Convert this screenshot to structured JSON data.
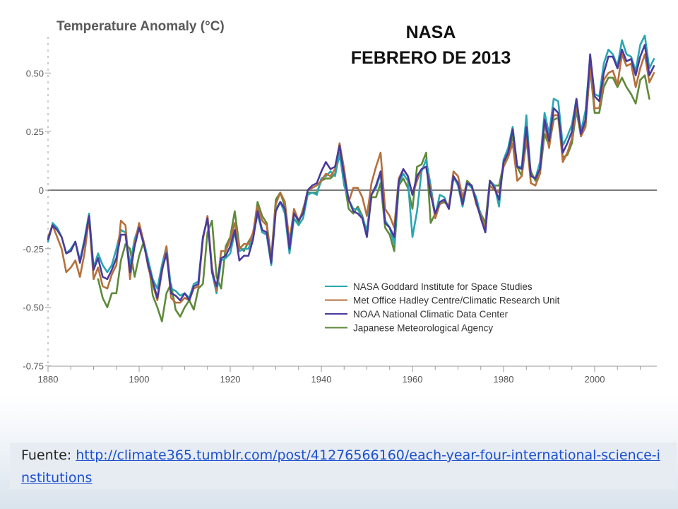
{
  "slide": {
    "title_line1": "NASA",
    "title_line2": "FEBRERO DE 2013",
    "source_label": "Fuente: ",
    "source_url": "http://climate365.tumblr.com/post/41276566160/each-year-four-international-science-institutions"
  },
  "chart_data": {
    "type": "line",
    "title": "Temperature Anomaly (°C)",
    "xlabel": "",
    "ylabel": "",
    "xlim": [
      1880,
      2012
    ],
    "ylim": [
      -0.75,
      0.65
    ],
    "x_ticks": [
      1880,
      1900,
      1920,
      1940,
      1960,
      1980,
      2000
    ],
    "y_ticks": [
      -0.75,
      -0.5,
      -0.25,
      0,
      0.25,
      0.5
    ],
    "y_tick_labels": [
      "-0.75",
      "-0.50",
      "-0.25",
      "0",
      "0.25",
      "0.50"
    ],
    "grid": false,
    "zero_line": true,
    "legend_position": "lower-right",
    "series": [
      {
        "name": "NASA Goddard Institute for Space Studies",
        "color": "#2aa6b2",
        "x_start": 1880,
        "values": [
          -0.22,
          -0.14,
          -0.16,
          -0.2,
          -0.27,
          -0.25,
          -0.22,
          -0.3,
          -0.21,
          -0.1,
          -0.33,
          -0.27,
          -0.32,
          -0.35,
          -0.32,
          -0.25,
          -0.17,
          -0.18,
          -0.32,
          -0.21,
          -0.15,
          -0.22,
          -0.3,
          -0.38,
          -0.42,
          -0.32,
          -0.24,
          -0.42,
          -0.43,
          -0.45,
          -0.44,
          -0.46,
          -0.4,
          -0.39,
          -0.2,
          -0.12,
          -0.35,
          -0.44,
          -0.3,
          -0.29,
          -0.27,
          -0.18,
          -0.26,
          -0.25,
          -0.25,
          -0.2,
          -0.1,
          -0.18,
          -0.19,
          -0.32,
          -0.08,
          -0.05,
          -0.1,
          -0.27,
          -0.12,
          -0.15,
          -0.12,
          -0.02,
          -0.01,
          -0.02,
          0.05,
          0.06,
          0.08,
          0.06,
          0.16,
          0.02,
          -0.04,
          -0.08,
          -0.08,
          -0.12,
          -0.17,
          -0.02,
          0.01,
          0.07,
          -0.13,
          -0.16,
          -0.23,
          0.03,
          0.07,
          0.04,
          -0.2,
          -0.09,
          0.08,
          0.13,
          0.02,
          -0.11,
          -0.02,
          -0.03,
          -0.08,
          0.06,
          0.02,
          -0.07,
          0.03,
          0.01,
          -0.03,
          -0.11,
          -0.18,
          0.04,
          0.02,
          -0.07,
          0.13,
          0.18,
          0.27,
          0.1,
          0.1,
          0.32,
          0.06,
          0.05,
          0.12,
          0.33,
          0.24,
          0.39,
          0.38,
          0.19,
          0.23,
          0.28,
          0.39,
          0.25,
          0.34,
          0.57,
          0.41,
          0.4,
          0.54,
          0.6,
          0.58,
          0.53,
          0.64,
          0.58,
          0.57,
          0.51,
          0.62,
          0.66,
          0.52,
          0.56
        ]
      },
      {
        "name": "Met Office Hadley Centre/Climatic Research Unit",
        "color": "#b5703b",
        "x_start": 1880,
        "values": [
          -0.2,
          -0.15,
          -0.2,
          -0.25,
          -0.35,
          -0.33,
          -0.3,
          -0.37,
          -0.27,
          -0.12,
          -0.38,
          -0.33,
          -0.41,
          -0.42,
          -0.36,
          -0.32,
          -0.13,
          -0.15,
          -0.38,
          -0.23,
          -0.14,
          -0.22,
          -0.33,
          -0.4,
          -0.47,
          -0.35,
          -0.24,
          -0.46,
          -0.48,
          -0.48,
          -0.46,
          -0.47,
          -0.42,
          -0.41,
          -0.21,
          -0.11,
          -0.33,
          -0.43,
          -0.26,
          -0.26,
          -0.21,
          -0.14,
          -0.25,
          -0.23,
          -0.23,
          -0.18,
          -0.07,
          -0.13,
          -0.15,
          -0.3,
          -0.06,
          -0.01,
          -0.05,
          -0.22,
          -0.08,
          -0.13,
          -0.09,
          0.0,
          0.01,
          0.02,
          0.04,
          0.07,
          0.06,
          0.09,
          0.2,
          0.09,
          -0.05,
          0.01,
          0.01,
          -0.03,
          -0.11,
          0.03,
          0.1,
          0.16,
          -0.08,
          -0.11,
          -0.16,
          0.05,
          0.09,
          0.06,
          -0.02,
          0.04,
          0.09,
          0.1,
          0.0,
          -0.12,
          -0.06,
          -0.04,
          -0.07,
          0.08,
          0.06,
          -0.03,
          0.03,
          0.02,
          -0.06,
          -0.11,
          -0.16,
          0.02,
          0.0,
          -0.01,
          0.1,
          0.14,
          0.2,
          0.04,
          0.06,
          0.23,
          0.03,
          0.02,
          0.07,
          0.29,
          0.18,
          0.32,
          0.32,
          0.12,
          0.16,
          0.22,
          0.37,
          0.23,
          0.27,
          0.53,
          0.35,
          0.35,
          0.47,
          0.5,
          0.51,
          0.45,
          0.58,
          0.53,
          0.54,
          0.44,
          0.52,
          0.58,
          0.46,
          0.5
        ]
      },
      {
        "name": "NOAA National Climatic Data Center",
        "color": "#4a3a9c",
        "x_start": 1880,
        "values": [
          -0.21,
          -0.15,
          -0.17,
          -0.2,
          -0.27,
          -0.26,
          -0.22,
          -0.31,
          -0.22,
          -0.11,
          -0.34,
          -0.29,
          -0.37,
          -0.38,
          -0.34,
          -0.29,
          -0.19,
          -0.19,
          -0.35,
          -0.24,
          -0.16,
          -0.23,
          -0.32,
          -0.39,
          -0.46,
          -0.34,
          -0.27,
          -0.44,
          -0.45,
          -0.47,
          -0.44,
          -0.47,
          -0.41,
          -0.4,
          -0.2,
          -0.12,
          -0.35,
          -0.41,
          -0.29,
          -0.28,
          -0.24,
          -0.17,
          -0.3,
          -0.28,
          -0.28,
          -0.21,
          -0.09,
          -0.17,
          -0.18,
          -0.31,
          -0.09,
          -0.05,
          -0.08,
          -0.25,
          -0.1,
          -0.13,
          -0.1,
          0.0,
          0.02,
          0.03,
          0.08,
          0.12,
          0.09,
          0.1,
          0.19,
          0.06,
          -0.04,
          -0.09,
          -0.1,
          -0.12,
          -0.2,
          -0.02,
          0.02,
          0.08,
          -0.14,
          -0.16,
          -0.2,
          0.04,
          0.09,
          0.06,
          -0.02,
          0.06,
          0.09,
          0.1,
          -0.02,
          -0.1,
          -0.05,
          -0.04,
          -0.08,
          0.06,
          0.03,
          -0.06,
          0.03,
          0.02,
          -0.05,
          -0.12,
          -0.18,
          0.04,
          0.01,
          -0.04,
          0.12,
          0.16,
          0.26,
          0.1,
          0.09,
          0.27,
          0.06,
          0.05,
          0.09,
          0.3,
          0.21,
          0.35,
          0.33,
          0.16,
          0.2,
          0.25,
          0.39,
          0.24,
          0.3,
          0.58,
          0.4,
          0.38,
          0.5,
          0.57,
          0.57,
          0.52,
          0.6,
          0.55,
          0.56,
          0.49,
          0.57,
          0.62,
          0.49,
          0.53
        ]
      },
      {
        "name": "Japanese Meteorological Agency",
        "color": "#5e8a3a",
        "x_start": 1891,
        "values": [
          -0.38,
          -0.46,
          -0.5,
          -0.44,
          -0.44,
          -0.3,
          -0.23,
          -0.25,
          -0.37,
          -0.28,
          -0.22,
          -0.3,
          -0.45,
          -0.5,
          -0.56,
          -0.44,
          -0.4,
          -0.51,
          -0.54,
          -0.5,
          -0.47,
          -0.51,
          -0.42,
          -0.4,
          -0.18,
          -0.13,
          -0.37,
          -0.42,
          -0.24,
          -0.2,
          -0.09,
          -0.24,
          -0.26,
          -0.22,
          -0.19,
          -0.05,
          -0.11,
          -0.14,
          -0.29,
          -0.04,
          -0.01,
          -0.07,
          -0.24,
          -0.09,
          -0.14,
          -0.08,
          -0.01,
          -0.01,
          -0.01,
          0.04,
          0.05,
          0.05,
          0.07,
          0.15,
          0.04,
          -0.08,
          -0.1,
          -0.07,
          -0.11,
          -0.18,
          -0.03,
          -0.03,
          0.03,
          -0.16,
          -0.19,
          -0.26,
          0.02,
          0.05,
          0.01,
          -0.08,
          0.1,
          0.11,
          0.16,
          -0.14,
          -0.1,
          -0.06,
          -0.05,
          -0.07,
          0.05,
          0.03,
          -0.05,
          0.04,
          0.02,
          -0.05,
          -0.1,
          -0.14,
          0.04,
          0.02,
          0.02,
          0.11,
          0.15,
          0.23,
          0.1,
          0.06,
          0.21,
          0.08,
          0.04,
          0.07,
          0.24,
          0.19,
          0.3,
          0.31,
          0.14,
          0.15,
          0.2,
          0.34,
          0.23,
          0.28,
          0.52,
          0.33,
          0.33,
          0.44,
          0.48,
          0.48,
          0.44,
          0.48,
          0.44,
          0.41,
          0.37,
          0.47,
          0.49,
          0.39
        ]
      }
    ]
  }
}
